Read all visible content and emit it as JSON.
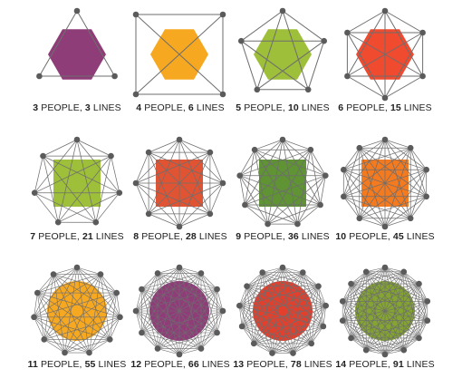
{
  "panels": [
    {
      "people": "3",
      "people_label": "PEOPLE,",
      "lines": "3",
      "lines_label": "LINES",
      "fill": "#8e3d79",
      "shape": "hexagon"
    },
    {
      "people": "4",
      "people_label": "PEOPLE,",
      "lines": "6",
      "lines_label": "LINES",
      "fill": "#f7a821",
      "shape": "hexagon"
    },
    {
      "people": "5",
      "people_label": "PEOPLE,",
      "lines": "10",
      "lines_label": "LINES",
      "fill": "#9ebf3a",
      "shape": "hexagon"
    },
    {
      "people": "6",
      "people_label": "PEOPLE,",
      "lines": "15",
      "lines_label": "LINES",
      "fill": "#f04a2f",
      "shape": "hexagon"
    },
    {
      "people": "7",
      "people_label": "PEOPLE,",
      "lines": "21",
      "lines_label": "LINES",
      "fill": "#9ebf3a",
      "shape": "square"
    },
    {
      "people": "8",
      "people_label": "PEOPLE,",
      "lines": "28",
      "lines_label": "LINES",
      "fill": "#e05433",
      "shape": "square"
    },
    {
      "people": "9",
      "people_label": "PEOPLE,",
      "lines": "36",
      "lines_label": "LINES",
      "fill": "#5f9334",
      "shape": "square"
    },
    {
      "people": "10",
      "people_label": "PEOPLE,",
      "lines": "45",
      "lines_label": "LINES",
      "fill": "#f47a1f",
      "shape": "square"
    },
    {
      "people": "11",
      "people_label": "PEOPLE,",
      "lines": "55",
      "lines_label": "LINES",
      "fill": "#f7a821",
      "shape": "circle"
    },
    {
      "people": "12",
      "people_label": "PEOPLE,",
      "lines": "66",
      "lines_label": "LINES",
      "fill": "#8e3d79",
      "shape": "circle"
    },
    {
      "people": "13",
      "people_label": "PEOPLE,",
      "lines": "78",
      "lines_label": "LINES",
      "fill": "#e23f2d",
      "shape": "circle"
    },
    {
      "people": "14",
      "people_label": "PEOPLE,",
      "lines": "91",
      "lines_label": "LINES",
      "fill": "#84a531",
      "shape": "circle"
    }
  ],
  "colors": {
    "line": "#6e6e6e",
    "node": "#5b5b5b",
    "text": "#222222"
  }
}
